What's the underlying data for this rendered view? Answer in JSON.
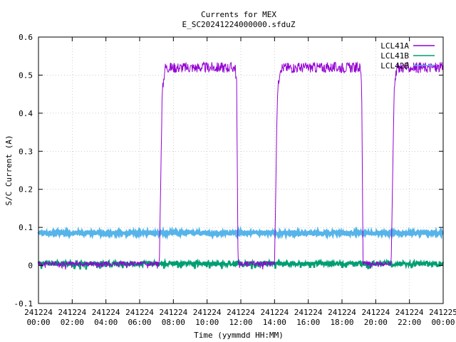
{
  "chart_data": {
    "type": "line",
    "title": "Currents for MEX",
    "subtitle": "E_SC20241224000000.sfduZ",
    "xlabel": "Time (yymmdd HH:MM)",
    "ylabel": "S/C Current (A)",
    "ylim": [
      -0.1,
      0.6
    ],
    "yticks": [
      "-0.1",
      "0",
      "0.1",
      "0.2",
      "0.3",
      "0.4",
      "0.5",
      "0.6"
    ],
    "xlim_hours": [
      0,
      24
    ],
    "xticks": [
      {
        "date": "241224",
        "time": "00:00"
      },
      {
        "date": "241224",
        "time": "02:00"
      },
      {
        "date": "241224",
        "time": "04:00"
      },
      {
        "date": "241224",
        "time": "06:00"
      },
      {
        "date": "241224",
        "time": "08:00"
      },
      {
        "date": "241224",
        "time": "10:00"
      },
      {
        "date": "241224",
        "time": "12:00"
      },
      {
        "date": "241224",
        "time": "14:00"
      },
      {
        "date": "241224",
        "time": "16:00"
      },
      {
        "date": "241224",
        "time": "18:00"
      },
      {
        "date": "241224",
        "time": "20:00"
      },
      {
        "date": "241224",
        "time": "22:00"
      },
      {
        "date": "241225",
        "time": "00:00"
      }
    ],
    "grid": true,
    "legend_position": "top-right",
    "series": [
      {
        "name": "LCL41A",
        "color": "#9400d3",
        "x": [
          "241224 00:00",
          "241224 07:10",
          "241224 07:20",
          "241224 07:30",
          "241224 11:40",
          "241224 11:45",
          "241224 11:50",
          "241224 14:00",
          "241224 14:10",
          "241224 14:20",
          "241224 19:05",
          "241224 19:10",
          "241224 19:15",
          "241224 20:55",
          "241224 21:05",
          "241224 21:15",
          "241225 00:00"
        ],
        "values": [
          0.005,
          0.005,
          0.45,
          0.52,
          0.52,
          0.48,
          0.005,
          0.005,
          0.45,
          0.52,
          0.52,
          0.48,
          0.005,
          0.005,
          0.45,
          0.52,
          0.52
        ]
      },
      {
        "name": "LCL41B",
        "color": "#009e73",
        "x": [
          "241224 00:00",
          "241225 00:00"
        ],
        "values": [
          0.005,
          0.005
        ]
      },
      {
        "name": "LCL42B",
        "color": "#56b4e9",
        "x": [
          "241224 00:00",
          "241225 00:00"
        ],
        "values": [
          0.085,
          0.085
        ]
      }
    ]
  }
}
